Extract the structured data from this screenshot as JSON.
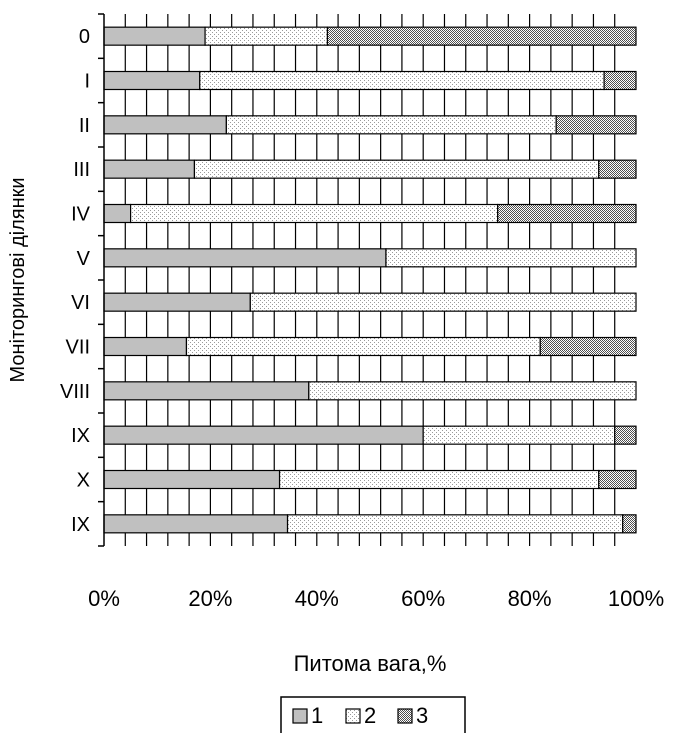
{
  "chart_data": {
    "type": "bar",
    "orientation": "horizontal",
    "stacking": "percent",
    "title": "",
    "xlabel": "Питома вага,%",
    "ylabel": "Моніторингові ділянки",
    "xlim": [
      0,
      100
    ],
    "x_ticks": [
      "0%",
      "20%",
      "40%",
      "60%",
      "80%",
      "100%"
    ],
    "x_tick_values": [
      0,
      20,
      40,
      60,
      80,
      100
    ],
    "grid": "vertical, every 4%",
    "legend_position": "bottom",
    "categories": [
      "0",
      "I",
      "II",
      "III",
      "IV",
      "V",
      "VI",
      "VII",
      "VIII",
      "IX",
      "X",
      "IX"
    ],
    "series": [
      {
        "name": "1",
        "values": [
          19,
          18,
          23,
          17,
          5,
          53,
          27.5,
          15.5,
          38.5,
          60,
          33,
          34.5
        ],
        "color": "#c0c0c0",
        "pattern": "solid-gray"
      },
      {
        "name": "2",
        "values": [
          23,
          76,
          62,
          76,
          69,
          47,
          72.5,
          66.5,
          61.5,
          36,
          60,
          63
        ],
        "color": "#f2f2f2",
        "pattern": "fine-dots"
      },
      {
        "name": "3",
        "values": [
          58,
          6,
          15,
          7,
          26,
          0,
          0,
          18,
          0,
          4,
          7,
          2.5
        ],
        "color": "#a6a6a6",
        "pattern": "dense-dots"
      }
    ]
  }
}
